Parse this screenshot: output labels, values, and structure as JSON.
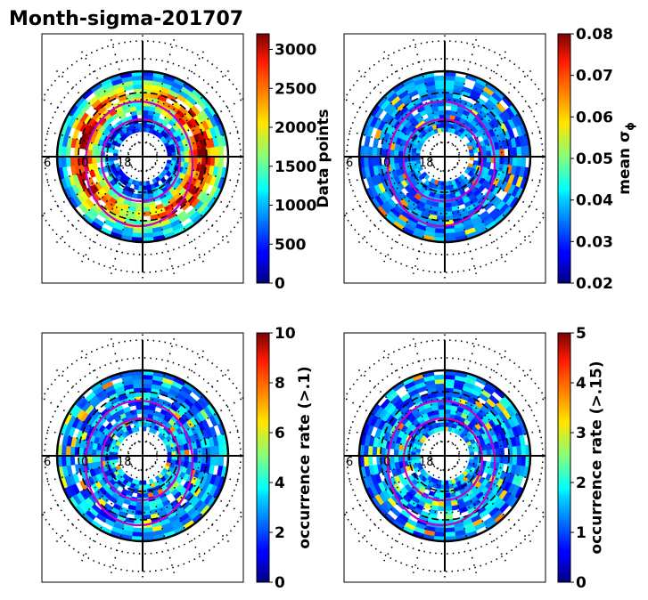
{
  "figure_title": "Month-sigma-201707",
  "chart_data": [
    {
      "type": "heatmap",
      "projection": "polar (magnetic latitude / MLT dial)",
      "colormap": "jet",
      "colorbar_label": "Data points",
      "clim": [
        0,
        3200
      ],
      "colorbar_ticks": [
        "0",
        "500",
        "1000",
        "1500",
        "2000",
        "2500",
        "3000"
      ],
      "tick_values": [
        0,
        500,
        1000,
        1500,
        2000,
        2500,
        3000
      ],
      "mlt_labels": [
        "6",
        "0",
        "18"
      ],
      "intensity": "high"
    },
    {
      "type": "heatmap",
      "projection": "polar (magnetic latitude / MLT dial)",
      "colormap": "jet",
      "colorbar_label": "mean σ",
      "colorbar_label_sub": "ϕ",
      "clim": [
        0.02,
        0.08
      ],
      "colorbar_ticks": [
        "0.02",
        "0.03",
        "0.04",
        "0.05",
        "0.06",
        "0.07",
        "0.08"
      ],
      "tick_values": [
        0.02,
        0.03,
        0.04,
        0.05,
        0.06,
        0.07,
        0.08
      ],
      "mlt_labels": [
        "6",
        "0",
        "18"
      ],
      "intensity": "low"
    },
    {
      "type": "heatmap",
      "projection": "polar (magnetic latitude / MLT dial)",
      "colormap": "jet",
      "colorbar_label": "occurrence rate (>.1)",
      "clim": [
        0,
        10
      ],
      "colorbar_ticks": [
        "0",
        "2",
        "4",
        "6",
        "8",
        "10"
      ],
      "tick_values": [
        0,
        2,
        4,
        6,
        8,
        10
      ],
      "mlt_labels": [
        "6",
        "0",
        "18"
      ],
      "intensity": "mid"
    },
    {
      "type": "heatmap",
      "projection": "polar (magnetic latitude / MLT dial)",
      "colormap": "jet",
      "colorbar_label": "occurrence rate (>.15)",
      "clim": [
        0,
        5
      ],
      "colorbar_ticks": [
        "0",
        "1",
        "2",
        "3",
        "4",
        "5"
      ],
      "tick_values": [
        0,
        1,
        2,
        3,
        4,
        5
      ],
      "mlt_labels": [
        "6",
        "0",
        "18"
      ],
      "intensity": "mid"
    }
  ]
}
